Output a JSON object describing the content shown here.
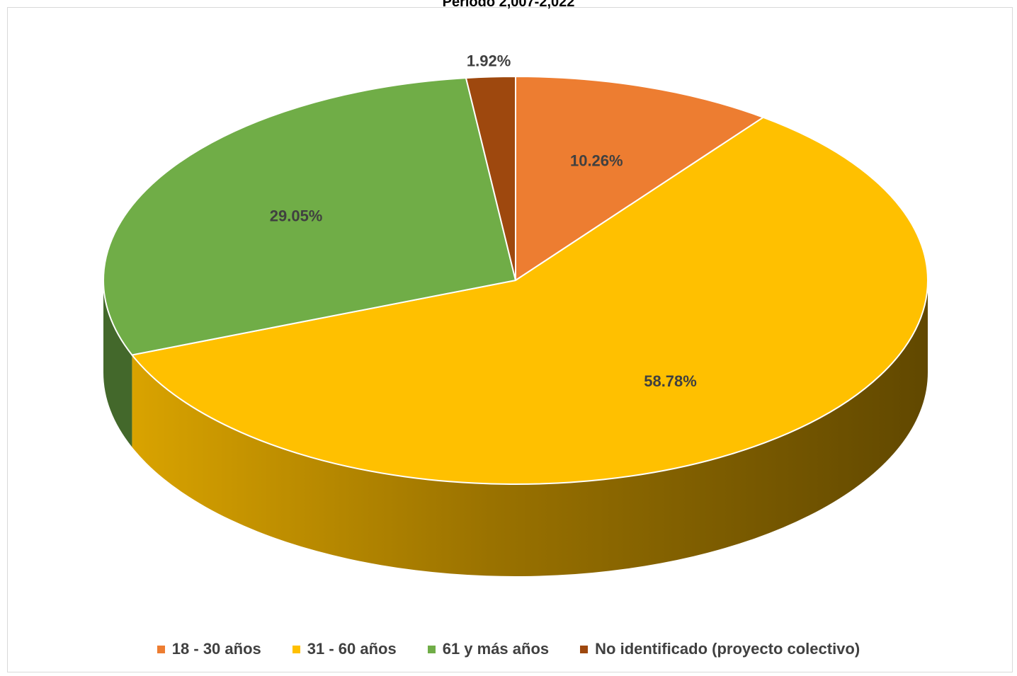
{
  "chart_data": {
    "type": "pie",
    "title": "Periodo 2,007-2,022",
    "three_d": true,
    "legend_position": "bottom",
    "slices": [
      {
        "label": "18 - 30 años",
        "value": 10.26,
        "display": "10.26%",
        "color": "#ED7D31"
      },
      {
        "label": "31 - 60 años",
        "value": 58.78,
        "display": "58.78%",
        "color": "#FFC000"
      },
      {
        "label": "61 y más años",
        "value": 29.05,
        "display": "29.05%",
        "color": "#70AD47"
      },
      {
        "label": "No identificado (proyecto colectivo)",
        "value": 1.92,
        "display": "1.92%",
        "color": "#9E480E"
      }
    ]
  }
}
